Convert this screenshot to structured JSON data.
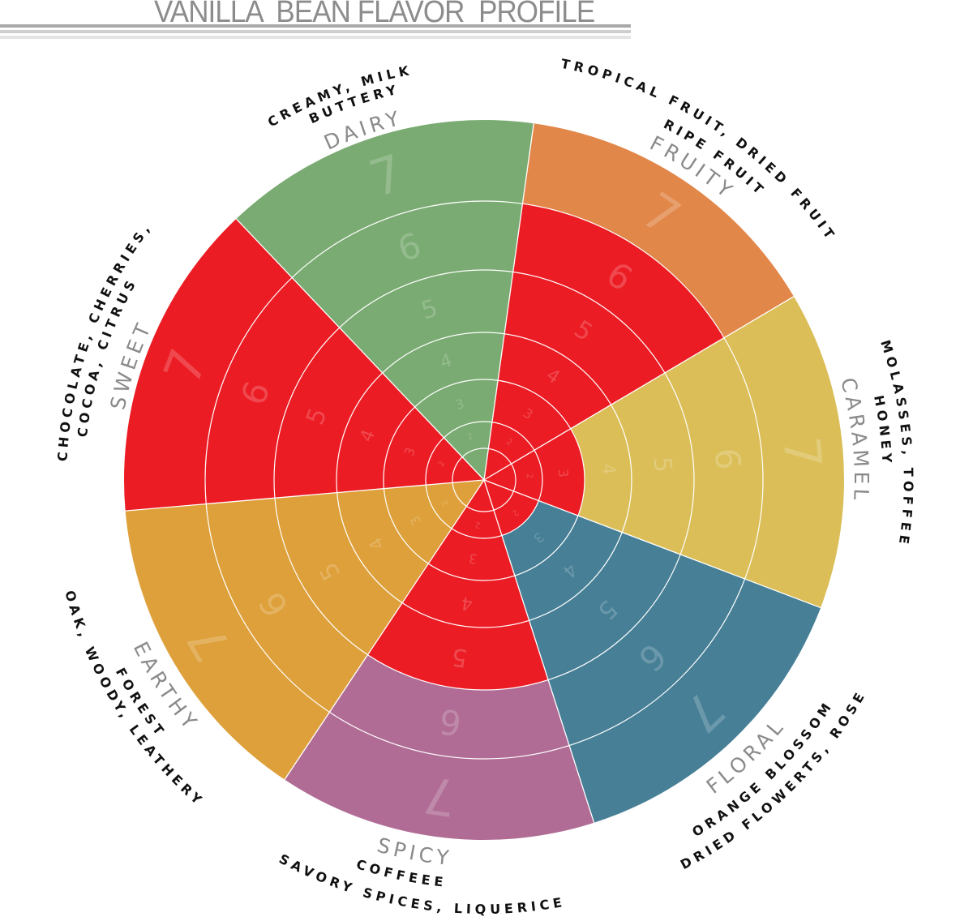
{
  "title": "VANILLA  BEAN FLAVOR  PROFILE",
  "chart_data": {
    "type": "polar-area",
    "scale": {
      "min": 0,
      "max": 7,
      "ring_labels": [
        1,
        2,
        3,
        4,
        5,
        6,
        7
      ]
    },
    "categories": [
      "DAIRY",
      "FRUITY",
      "CARAMEL",
      "FLORAL",
      "SPICY",
      "EARTHY",
      "SWEET"
    ],
    "descriptors": [
      [
        "CREAMY, MILK",
        "BUTTERY"
      ],
      [
        "TROPICAL FRUIT, DRIED FRUIT",
        "RIPE FRUIT"
      ],
      [
        "MOLASSES, TOFFEE",
        "HONEY"
      ],
      [
        "ORANGE BLOSSOM",
        "DRIED FLOWERTS, ROSE"
      ],
      [
        "COFFEEE",
        "SAVORY SPICES, LIQUERICE"
      ],
      [
        "FOREST",
        "OAK, WOODY, LEATHERY"
      ],
      [
        "CHOCOLATE, CHERRIES,",
        "COCOA, CITRUS"
      ]
    ],
    "values": [
      7,
      7,
      7,
      7,
      7,
      7,
      7
    ],
    "red_inner_levels": [
      0,
      6,
      3,
      2,
      5,
      0,
      7
    ],
    "colors": [
      "#7aab72",
      "#e2874a",
      "#dbbe58",
      "#467f96",
      "#b06c94",
      "#dea03a",
      "#ec1c24"
    ],
    "red_color": "#ec1c24"
  }
}
